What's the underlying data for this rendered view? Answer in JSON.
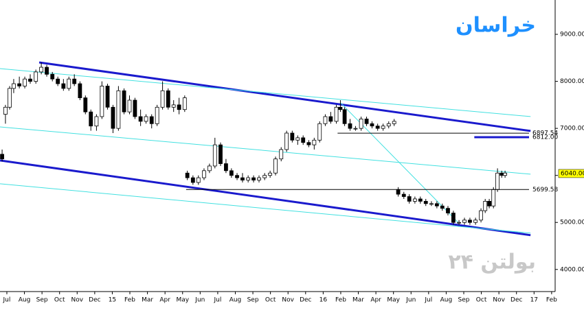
{
  "chart_data": {
    "type": "candlestick",
    "title": "خراسان",
    "watermark": "بولتن ۲۴",
    "xlim": [
      -0.39,
      31.2
    ],
    "ylim": [
      3530,
      9730
    ],
    "xticks": [
      {
        "value": 0,
        "label": "Jul"
      },
      {
        "value": 1,
        "label": "Aug"
      },
      {
        "value": 2,
        "label": "Sep"
      },
      {
        "value": 3,
        "label": "Oct"
      },
      {
        "value": 4,
        "label": "Nov"
      },
      {
        "value": 5,
        "label": "Dec"
      },
      {
        "value": 6,
        "label": "15"
      },
      {
        "value": 7,
        "label": "Feb"
      },
      {
        "value": 8,
        "label": "Mar"
      },
      {
        "value": 9,
        "label": "Apr"
      },
      {
        "value": 10,
        "label": "May"
      },
      {
        "value": 11,
        "label": "Jun"
      },
      {
        "value": 12,
        "label": "Jul"
      },
      {
        "value": 13,
        "label": "Aug"
      },
      {
        "value": 14,
        "label": "Sep"
      },
      {
        "value": 15,
        "label": "Oct"
      },
      {
        "value": 16,
        "label": "Nov"
      },
      {
        "value": 17,
        "label": "Dec"
      },
      {
        "value": 18,
        "label": "16"
      },
      {
        "value": 19,
        "label": "Feb"
      },
      {
        "value": 20,
        "label": "Mar"
      },
      {
        "value": 21,
        "label": "Apr"
      },
      {
        "value": 22,
        "label": "May"
      },
      {
        "value": 23,
        "label": "Jun"
      },
      {
        "value": 24,
        "label": "Jul"
      },
      {
        "value": 25,
        "label": "Aug"
      },
      {
        "value": 26,
        "label": "Sep"
      },
      {
        "value": 27,
        "label": "Oct"
      },
      {
        "value": 28,
        "label": "Nov"
      },
      {
        "value": 29,
        "label": "Dec"
      },
      {
        "value": 30,
        "label": "17"
      },
      {
        "value": 31,
        "label": "Feb"
      }
    ],
    "yticks": [
      {
        "value": 4000,
        "label": "4000.00"
      },
      {
        "value": 5000,
        "label": "5000.00"
      },
      {
        "value": 6000,
        "label": "6000.00"
      },
      {
        "value": 7000,
        "label": "7000.00"
      },
      {
        "value": 8000,
        "label": "8000.00"
      },
      {
        "value": 9000,
        "label": "9000.00"
      }
    ],
    "x": [
      -0.27,
      -0.08,
      0.16,
      0.39,
      0.71,
      1.02,
      1.33,
      1.65,
      1.96,
      2.27,
      2.59,
      2.9,
      3.22,
      3.53,
      3.84,
      4.16,
      4.47,
      4.78,
      5.1,
      5.41,
      5.73,
      6.04,
      6.35,
      6.67,
      6.98,
      7.29,
      7.61,
      7.92,
      8.24,
      8.55,
      8.86,
      9.18,
      9.49,
      9.8,
      10.12,
      10.27,
      10.59,
      10.9,
      11.22,
      11.53,
      11.84,
      12.16,
      12.47,
      12.78,
      13.1,
      13.41,
      13.73,
      14.04,
      14.35,
      14.67,
      14.98,
      15.29,
      15.61,
      15.92,
      16.24,
      16.55,
      16.86,
      17.18,
      17.49,
      17.8,
      18.12,
      18.43,
      18.75,
      18.98,
      19.22,
      19.53,
      19.84,
      20.16,
      20.47,
      20.78,
      21.1,
      21.41,
      21.73,
      22.04,
      22.27,
      22.59,
      22.9,
      23.22,
      23.53,
      23.84,
      24.16,
      24.47,
      24.78,
      25.1,
      25.41,
      25.73,
      26.04,
      26.35,
      26.67,
      26.98,
      27.22,
      27.45,
      27.69,
      27.92,
      28.16,
      28.35
    ],
    "open": [
      6450,
      7300,
      7450,
      7850,
      7950,
      7900,
      8050,
      8000,
      8200,
      8300,
      8150,
      8050,
      7950,
      7850,
      8050,
      7950,
      7650,
      7350,
      7050,
      7250,
      7900,
      7450,
      7000,
      7800,
      7350,
      7600,
      7250,
      7150,
      7250,
      7100,
      7450,
      7800,
      7450,
      7500,
      7400,
      6050,
      5950,
      5850,
      5950,
      6100,
      6200,
      6650,
      6250,
      6100,
      6000,
      5950,
      5900,
      5950,
      5900,
      5950,
      6000,
      6050,
      6350,
      6550,
      6900,
      6750,
      6800,
      6700,
      6650,
      6750,
      7100,
      7250,
      7150,
      7450,
      7400,
      7100,
      7000,
      7000,
      7200,
      7100,
      7050,
      7000,
      7050,
      7100,
      5700,
      5600,
      5550,
      5450,
      5500,
      5450,
      5400,
      5400,
      5350,
      5300,
      5200,
      5000,
      5000,
      5050,
      5000,
      5050,
      5250,
      5450,
      5350,
      5700,
      6050,
      6000
    ],
    "high": [
      6550,
      7500,
      7900,
      8050,
      8100,
      8100,
      8150,
      8250,
      8400,
      8350,
      8200,
      8100,
      8050,
      8100,
      8150,
      8000,
      7700,
      7400,
      7300,
      8000,
      7950,
      7500,
      7900,
      7850,
      7700,
      7650,
      7400,
      7300,
      7300,
      7500,
      8000,
      7850,
      7600,
      7650,
      7700,
      6100,
      6000,
      6000,
      6150,
      6250,
      6800,
      6700,
      6350,
      6150,
      6050,
      6050,
      6000,
      6000,
      6000,
      6050,
      6100,
      6400,
      6600,
      6950,
      6950,
      6850,
      6850,
      6750,
      6800,
      7150,
      7300,
      7350,
      7500,
      7600,
      7450,
      7200,
      7050,
      7250,
      7250,
      7150,
      7100,
      7100,
      7150,
      7200,
      5750,
      5650,
      5600,
      5550,
      5550,
      5500,
      5450,
      5450,
      5400,
      5350,
      5250,
      5050,
      5100,
      5100,
      5100,
      5300,
      5500,
      5500,
      5750,
      6150,
      6100,
      6100
    ],
    "low": [
      6300,
      7100,
      7400,
      7750,
      7850,
      7850,
      7950,
      7950,
      8150,
      8100,
      8000,
      7900,
      7800,
      7800,
      7900,
      7600,
      7300,
      6950,
      6950,
      7200,
      7400,
      6900,
      6950,
      7300,
      7300,
      7200,
      7050,
      7100,
      7000,
      7050,
      7400,
      7400,
      7350,
      7300,
      7350,
      5900,
      5800,
      5800,
      5900,
      6050,
      6150,
      6200,
      6050,
      5950,
      5900,
      5850,
      5850,
      5850,
      5850,
      5900,
      5950,
      6000,
      6300,
      6500,
      6700,
      6650,
      6650,
      6600,
      6550,
      6700,
      7050,
      7100,
      7100,
      7350,
      7050,
      6950,
      6950,
      6950,
      7050,
      7000,
      6950,
      6950,
      7000,
      7050,
      5550,
      5500,
      5400,
      5400,
      5400,
      5350,
      5350,
      5300,
      5250,
      5150,
      4950,
      4950,
      4950,
      4950,
      4950,
      5000,
      5200,
      5300,
      5300,
      5650,
      5950,
      5950
    ],
    "close": [
      6350,
      7450,
      7850,
      7950,
      7900,
      8050,
      8000,
      8200,
      8300,
      8150,
      8050,
      7950,
      7850,
      8050,
      7950,
      7650,
      7350,
      7050,
      7250,
      7900,
      7450,
      7000,
      7800,
      7350,
      7600,
      7250,
      7150,
      7250,
      7100,
      7450,
      7800,
      7450,
      7500,
      7400,
      7650,
      5950,
      5850,
      5950,
      6100,
      6200,
      6650,
      6250,
      6100,
      6000,
      5950,
      5900,
      5950,
      5900,
      5950,
      6000,
      6050,
      6350,
      6550,
      6900,
      6750,
      6800,
      6700,
      6650,
      6750,
      7100,
      7250,
      7150,
      7450,
      7400,
      7100,
      7000,
      7000,
      7200,
      7100,
      7050,
      7000,
      7050,
      7100,
      7150,
      5600,
      5550,
      5450,
      5500,
      5450,
      5400,
      5400,
      5350,
      5300,
      5200,
      5000,
      5000,
      5050,
      5000,
      5050,
      5250,
      5450,
      5350,
      5700,
      6050,
      6000,
      6050
    ],
    "up_color": "#ffffff",
    "down_color": "#000000",
    "trendlines": [
      {
        "x": [
          1.84,
          29.8
        ],
        "y": [
          8402,
          6945
        ],
        "color": "#1a1acd",
        "width": 3
      },
      {
        "x": [
          -0.39,
          29.8
        ],
        "y": [
          6318,
          4729
        ],
        "color": "#1a1acd",
        "width": 3
      },
      {
        "x": [
          -0.39,
          29.8
        ],
        "y": [
          8271,
          7251
        ],
        "color": "#40e0e0",
        "width": 1
      },
      {
        "x": [
          -0.39,
          29.8
        ],
        "y": [
          7032,
          6026
        ],
        "color": "#40e0e0",
        "width": 1
      },
      {
        "x": [
          -0.39,
          29.8
        ],
        "y": [
          5822,
          4773
        ],
        "color": "#40e0e0",
        "width": 1
      },
      {
        "x": [
          19.0,
          25.7
        ],
        "y": [
          7542,
          4991
        ],
        "color": "#40e0e0",
        "width": 1
      }
    ],
    "levels": [
      {
        "value": 6897.54,
        "label": "6897.54",
        "from": 18.82,
        "color": "#000000",
        "width": 1,
        "label_color": "#000000",
        "label_bg": "#ffffff"
      },
      {
        "value": 6812,
        "label": "6812.00",
        "from": 26.6,
        "color": "#1a1acd",
        "width": 3,
        "label_color": "#1a1acd",
        "label_bg": "#ffffff"
      },
      {
        "value": 5699.58,
        "label": "5699.58",
        "from": 10.2,
        "color": "#000000",
        "width": 1,
        "label_color": "#000000",
        "label_bg": "#ffffff"
      },
      {
        "value": 6040,
        "label": "6040.00",
        "from": null,
        "color": "#000000",
        "width": 0,
        "label_color": "#000000",
        "label_bg": "#ffff00"
      }
    ]
  }
}
